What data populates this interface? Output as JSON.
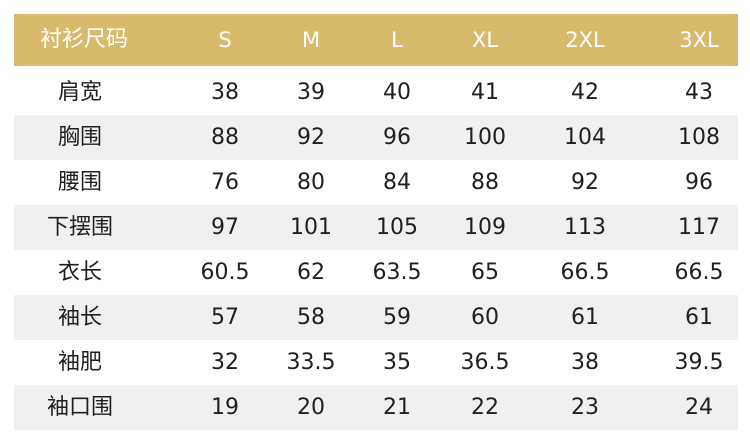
{
  "table": {
    "headers": [
      "衬衫尺码",
      "S",
      "M",
      "L",
      "XL",
      "2XL",
      "3XL"
    ],
    "rows": [
      [
        "肩宽",
        "38",
        "39",
        "40",
        "41",
        "42",
        "43"
      ],
      [
        "胸围",
        "88",
        "92",
        "96",
        "100",
        "104",
        "108"
      ],
      [
        "腰围",
        "76",
        "80",
        "84",
        "88",
        "92",
        "96"
      ],
      [
        "下摆围",
        "97",
        "101",
        "105",
        "109",
        "113",
        "117"
      ],
      [
        "衣长",
        "60.5",
        "62",
        "63.5",
        "65",
        "66.5",
        "66.5"
      ],
      [
        "袖长",
        "57",
        "58",
        "59",
        "60",
        "61",
        "61"
      ],
      [
        "袖肥",
        "32",
        "33.5",
        "35",
        "36.5",
        "38",
        "39.5"
      ],
      [
        "袖口围",
        "19",
        "20",
        "21",
        "22",
        "23",
        "24"
      ]
    ]
  },
  "colors": {
    "header_background": "#d9b96c",
    "header_text": "#ffffff",
    "stripe_background": "#f0f0f0",
    "body_text": "#1f1f1f"
  }
}
